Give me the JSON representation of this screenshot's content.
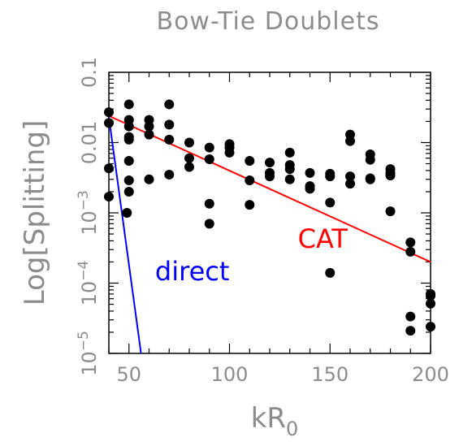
{
  "chart_data": {
    "type": "scatter",
    "title": "Bow-Tie Doublets",
    "xlabel": "kR",
    "xlabel_subscript": "0",
    "ylabel": "Log[Splitting]",
    "xlim": [
      40,
      200
    ],
    "ylim_exponent": [
      -5,
      -1
    ],
    "y_scale": "log",
    "grid": false,
    "x_ticks": [
      {
        "value": 50,
        "label": "50"
      },
      {
        "value": 100,
        "label": "100"
      },
      {
        "value": 150,
        "label": "150"
      },
      {
        "value": 200,
        "label": "200"
      }
    ],
    "y_ticks": [
      {
        "exp": -1,
        "label": "0.1"
      },
      {
        "exp": -2,
        "label": "0.01"
      },
      {
        "exp": -3,
        "base": "10",
        "sup": "−3"
      },
      {
        "exp": -4,
        "base": "10",
        "sup": "−4"
      },
      {
        "exp": -5,
        "base": "10",
        "sup": "−5"
      }
    ],
    "points": [
      [
        40,
        0.027
      ],
      [
        40,
        0.019
      ],
      [
        40,
        0.0043
      ],
      [
        40,
        0.0017
      ],
      [
        50,
        0.035
      ],
      [
        50,
        0.021
      ],
      [
        50,
        0.017
      ],
      [
        50,
        0.012
      ],
      [
        50,
        0.011
      ],
      [
        50,
        0.0055
      ],
      [
        50,
        0.0029
      ],
      [
        50,
        0.002
      ],
      [
        49,
        0.001
      ],
      [
        60,
        0.021
      ],
      [
        60,
        0.017
      ],
      [
        60,
        0.013
      ],
      [
        60,
        0.003
      ],
      [
        70,
        0.035
      ],
      [
        70,
        0.018
      ],
      [
        70,
        0.011
      ],
      [
        70,
        0.0035
      ],
      [
        80,
        0.01
      ],
      [
        80,
        0.006
      ],
      [
        80,
        0.0045
      ],
      [
        90,
        0.0085
      ],
      [
        90,
        0.0058
      ],
      [
        90,
        0.00135
      ],
      [
        90,
        0.0007
      ],
      [
        100,
        0.0095
      ],
      [
        100,
        0.0085
      ],
      [
        100,
        0.0072
      ],
      [
        110,
        0.0055
      ],
      [
        110,
        0.0029
      ],
      [
        110,
        0.0013
      ],
      [
        120,
        0.0052
      ],
      [
        120,
        0.0037
      ],
      [
        120,
        0.0033
      ],
      [
        130,
        0.0072
      ],
      [
        130,
        0.0048
      ],
      [
        130,
        0.0042
      ],
      [
        130,
        0.003
      ],
      [
        140,
        0.0037
      ],
      [
        140,
        0.0024
      ],
      [
        140,
        0.0022
      ],
      [
        150,
        0.0036
      ],
      [
        150,
        0.0033
      ],
      [
        150,
        0.0014
      ],
      [
        150,
        0.00014
      ],
      [
        160,
        0.013
      ],
      [
        160,
        0.0105
      ],
      [
        160,
        0.0033
      ],
      [
        160,
        0.0026
      ],
      [
        170,
        0.0068
      ],
      [
        170,
        0.0057
      ],
      [
        170,
        0.0031
      ],
      [
        170,
        0.003
      ],
      [
        180,
        0.0042
      ],
      [
        180,
        0.0037
      ],
      [
        180,
        0.0034
      ],
      [
        180,
        0.00105
      ],
      [
        190,
        0.00038
      ],
      [
        190,
        0.00028
      ],
      [
        190,
        3.35e-05
      ],
      [
        190,
        2.1e-05
      ],
      [
        200,
        7e-05
      ],
      [
        200,
        6.6e-05
      ],
      [
        200,
        5.1e-05
      ],
      [
        200,
        2.4e-05
      ]
    ],
    "lines": [
      {
        "label": "CAT",
        "color": "#ff0000",
        "x": [
          40,
          200
        ],
        "y": [
          0.024,
          0.0002
        ]
      },
      {
        "label": "direct",
        "color": "#0000ff",
        "x": [
          40,
          56
        ],
        "y": [
          0.023,
          1e-05
        ]
      }
    ],
    "line_label_positions": {
      "CAT": [
        134,
        0.00032
      ],
      "direct": [
        63,
        0.00011
      ]
    }
  }
}
